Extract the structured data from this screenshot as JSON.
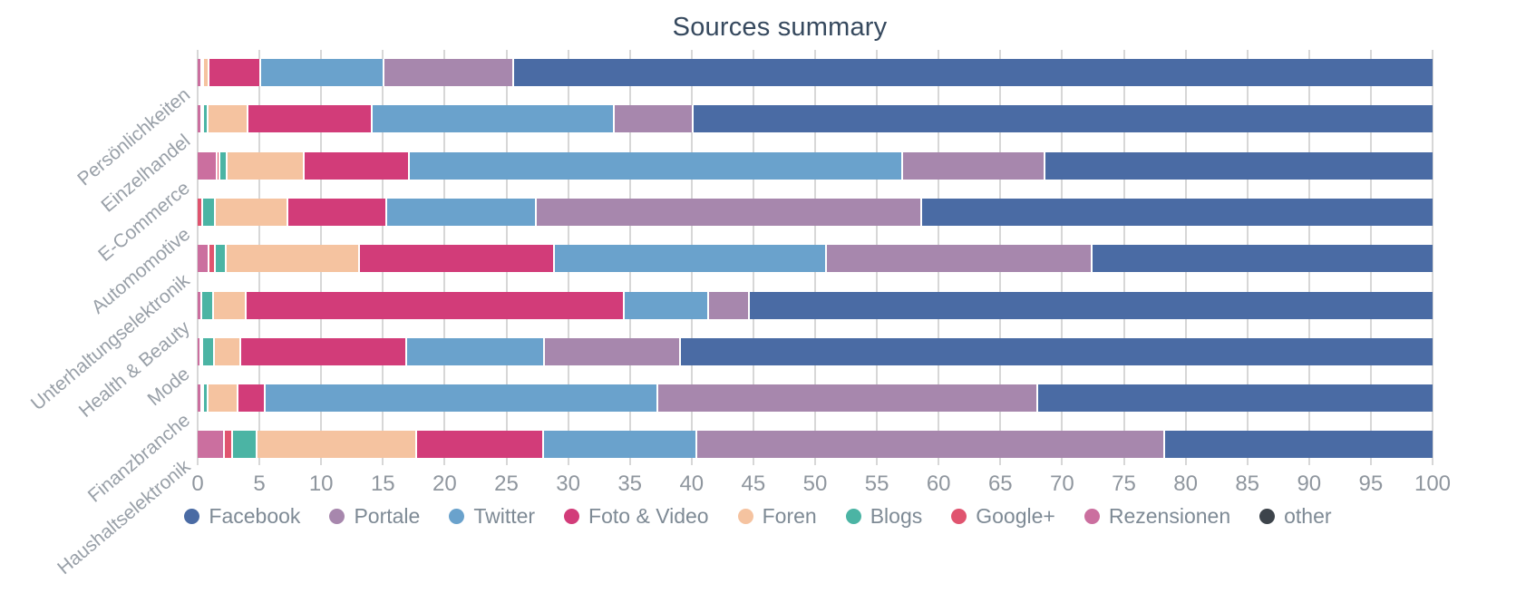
{
  "chart_data": {
    "type": "bar",
    "orientation": "horizontal",
    "stacked": true,
    "title": "Sources summary",
    "xlabel": "",
    "ylabel": "",
    "grid": true,
    "legend_position": "bottom",
    "x_axis": {
      "min": 0,
      "max": 100,
      "tick_step": 5
    },
    "categories": [
      "Persönlichkeiten",
      "Einzelhandel",
      "E-Commerce",
      "Automomotive",
      "Unterhaltungselektronik",
      "Health & Beauty",
      "Mode",
      "Finanzbranche",
      "Haushaltselektronik"
    ],
    "series": [
      {
        "name": "other",
        "color": "#3d444b",
        "values": [
          0,
          0,
          0,
          0,
          0,
          0,
          0,
          0,
          0
        ]
      },
      {
        "name": "Rezensionen",
        "color": "#cb6f9f",
        "values": [
          0.2,
          0.2,
          1.5,
          0,
          0.8,
          0.2,
          0.15,
          0.2,
          2.05
        ]
      },
      {
        "name": "Google+",
        "color": "#e0546f",
        "values": [
          0,
          0.2,
          0.2,
          0.3,
          0.5,
          0,
          0.15,
          0.1,
          0.65
        ]
      },
      {
        "name": "Blogs",
        "color": "#4bb4a4",
        "values": [
          0.2,
          0.3,
          0.6,
          1.0,
          0.9,
          1.0,
          0.95,
          0.4,
          2.0
        ]
      },
      {
        "name": "Foren",
        "color": "#f5c3a0",
        "values": [
          0.4,
          3.3,
          6.2,
          5.9,
          10.8,
          2.6,
          2.15,
          2.4,
          12.9
        ]
      },
      {
        "name": "Foto & Video",
        "color": "#d23c79",
        "values": [
          4.2,
          10.0,
          8.5,
          8.0,
          15.8,
          30.6,
          13.4,
          2.2,
          10.3
        ]
      },
      {
        "name": "Twitter",
        "color": "#6aa2cc",
        "values": [
          10.0,
          19.6,
          40.0,
          12.1,
          22.0,
          6.9,
          11.2,
          31.8,
          12.4
        ]
      },
      {
        "name": "Portale",
        "color": "#a787ad",
        "values": [
          10.5,
          6.4,
          11.5,
          31.2,
          21.5,
          3.3,
          11.0,
          30.8,
          37.9
        ]
      },
      {
        "name": "Facebook",
        "color": "#4a6ba4",
        "values": [
          74.5,
          60.0,
          31.5,
          41.5,
          27.7,
          55.4,
          61.0,
          32.1,
          21.8
        ]
      }
    ],
    "legend": [
      {
        "label": "Facebook",
        "color": "#4a6ba4"
      },
      {
        "label": "Portale",
        "color": "#a787ad"
      },
      {
        "label": "Twitter",
        "color": "#6aa2cc"
      },
      {
        "label": "Foto & Video",
        "color": "#d23c79"
      },
      {
        "label": "Foren",
        "color": "#f5c3a0"
      },
      {
        "label": "Blogs",
        "color": "#4bb4a4"
      },
      {
        "label": "Google+",
        "color": "#e0546f"
      },
      {
        "label": "Rezensionen",
        "color": "#cb6f9f"
      },
      {
        "label": "other",
        "color": "#3d444b"
      }
    ],
    "colors": {
      "title_text": "#36495e",
      "axis_text": "#8f969e",
      "legend_text": "#7e8a95",
      "gridline": "#d7d7d7",
      "background": "#ffffff"
    }
  }
}
